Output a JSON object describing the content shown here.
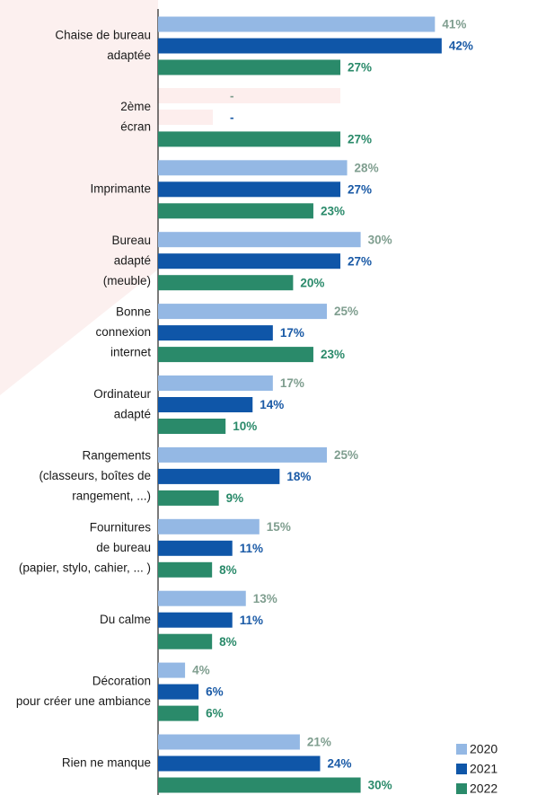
{
  "chart_data": {
    "type": "hbar",
    "categories": [
      [
        "Chaise de bureau",
        "adaptée"
      ],
      [
        "2ème",
        "écran"
      ],
      [
        "Imprimante"
      ],
      [
        "Bureau",
        "adapté",
        "(meuble)"
      ],
      [
        "Bonne",
        "connexion",
        "internet"
      ],
      [
        "Ordinateur",
        "adapté"
      ],
      [
        "Rangements",
        "(classeurs, boîtes de",
        "rangement, ...)"
      ],
      [
        "Fournitures",
        "de bureau",
        "(papier, stylo, cahier, ... )"
      ],
      [
        "Du calme"
      ],
      [
        "Décoration",
        "pour créer une ambiance"
      ],
      [
        "Rien ne manque"
      ]
    ],
    "series": [
      {
        "name": "2020",
        "color": "#94b8e4",
        "label_color": "#7f9e8f",
        "values": [
          41,
          null,
          28,
          30,
          25,
          17,
          25,
          15,
          13,
          4,
          21
        ],
        "value_labels": [
          "41%",
          "-",
          "28%",
          "30%",
          "25%",
          "17%",
          "25%",
          "15%",
          "13%",
          "4%",
          "21%"
        ]
      },
      {
        "name": "2021",
        "color": "#0f56a8",
        "label_color": "#1a5aa6",
        "values": [
          42,
          null,
          27,
          27,
          17,
          14,
          18,
          11,
          11,
          6,
          24
        ],
        "value_labels": [
          "42%",
          "-",
          "27%",
          "27%",
          "17%",
          "14%",
          "18%",
          "11%",
          "11%",
          "6%",
          "24%"
        ]
      },
      {
        "name": "2022",
        "color": "#2a8a6a",
        "label_color": "#2a8a6a",
        "values": [
          27,
          27,
          23,
          20,
          23,
          10,
          9,
          8,
          8,
          6,
          30
        ],
        "value_labels": [
          "27%",
          "27%",
          "23%",
          "20%",
          "23%",
          "10%",
          "9%",
          "8%",
          "8%",
          "6%",
          "30%"
        ]
      }
    ],
    "xlim": [
      0,
      56
    ]
  }
}
